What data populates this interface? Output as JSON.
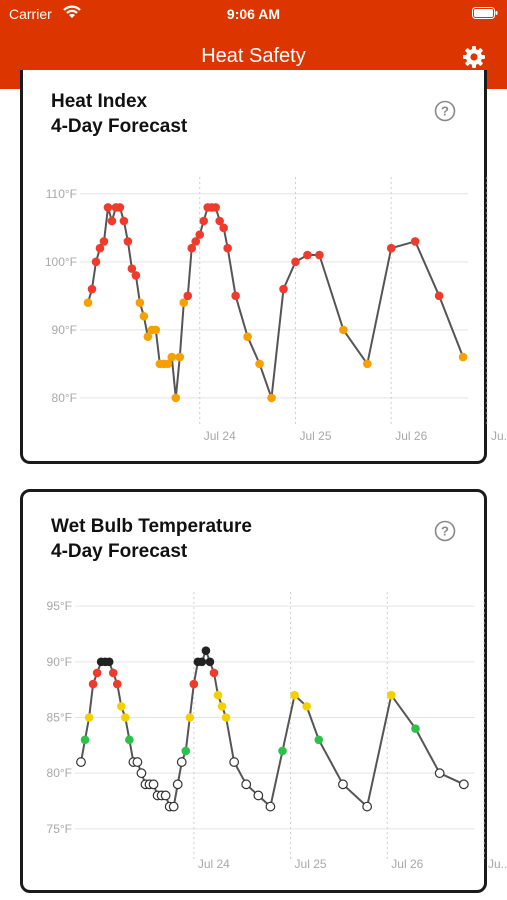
{
  "status_bar": {
    "carrier": "Carrier",
    "time": "9:06 AM"
  },
  "nav": {
    "title": "Heat Safety",
    "settings_icon": "gear-icon"
  },
  "heat_index_card": {
    "title_line1": "Heat Index",
    "title_line2": "4-Day Forecast",
    "help_icon": "question-circle-icon"
  },
  "wet_bulb_card": {
    "title_line1": "Wet Bulb Temperature",
    "title_line2": "4-Day Forecast",
    "help_icon": "question-circle-icon"
  },
  "colors": {
    "header": "#dc3500",
    "red": "#ef3b2c",
    "orange": "#f7a000",
    "yellow": "#f5d000",
    "green": "#2cc24a",
    "black": "#222222",
    "white": "#ffffff",
    "line": "#555555"
  },
  "chart_data": [
    {
      "type": "line",
      "title": "Heat Index",
      "subtitle": "4-Day Forecast",
      "ylim": [
        78,
        111
      ],
      "yticks": [
        "110°F",
        "100°F",
        "90°F",
        "80°F"
      ],
      "ytick_values": [
        110,
        100,
        90,
        80
      ],
      "xtick_labels": [
        "Jul 24",
        "Jul 25",
        "Jul 26",
        "Ju..."
      ],
      "xtick_hours": [
        28,
        52,
        76,
        100
      ],
      "grid": true,
      "points": [
        {
          "x": 0,
          "y": 94,
          "c": "orange"
        },
        {
          "x": 1,
          "y": 96,
          "c": "red"
        },
        {
          "x": 2,
          "y": 100,
          "c": "red"
        },
        {
          "x": 3,
          "y": 102,
          "c": "red"
        },
        {
          "x": 4,
          "y": 103,
          "c": "red"
        },
        {
          "x": 5,
          "y": 108,
          "c": "red"
        },
        {
          "x": 6,
          "y": 106,
          "c": "red"
        },
        {
          "x": 7,
          "y": 108,
          "c": "red"
        },
        {
          "x": 8,
          "y": 108,
          "c": "red"
        },
        {
          "x": 9,
          "y": 106,
          "c": "red"
        },
        {
          "x": 10,
          "y": 103,
          "c": "red"
        },
        {
          "x": 11,
          "y": 99,
          "c": "red"
        },
        {
          "x": 12,
          "y": 98,
          "c": "red"
        },
        {
          "x": 13,
          "y": 94,
          "c": "orange"
        },
        {
          "x": 14,
          "y": 92,
          "c": "orange"
        },
        {
          "x": 15,
          "y": 89,
          "c": "orange"
        },
        {
          "x": 16,
          "y": 90,
          "c": "orange"
        },
        {
          "x": 17,
          "y": 90,
          "c": "orange"
        },
        {
          "x": 18,
          "y": 85,
          "c": "orange"
        },
        {
          "x": 19,
          "y": 85,
          "c": "orange"
        },
        {
          "x": 20,
          "y": 85,
          "c": "orange"
        },
        {
          "x": 21,
          "y": 86,
          "c": "orange"
        },
        {
          "x": 22,
          "y": 80,
          "c": "orange"
        },
        {
          "x": 23,
          "y": 86,
          "c": "orange"
        },
        {
          "x": 24,
          "y": 94,
          "c": "orange"
        },
        {
          "x": 25,
          "y": 95,
          "c": "red"
        },
        {
          "x": 26,
          "y": 102,
          "c": "red"
        },
        {
          "x": 27,
          "y": 103,
          "c": "red"
        },
        {
          "x": 28,
          "y": 104,
          "c": "red"
        },
        {
          "x": 29,
          "y": 106,
          "c": "red"
        },
        {
          "x": 30,
          "y": 108,
          "c": "red"
        },
        {
          "x": 31,
          "y": 108,
          "c": "red"
        },
        {
          "x": 32,
          "y": 108,
          "c": "red"
        },
        {
          "x": 33,
          "y": 106,
          "c": "red"
        },
        {
          "x": 34,
          "y": 105,
          "c": "red"
        },
        {
          "x": 35,
          "y": 102,
          "c": "red"
        },
        {
          "x": 37,
          "y": 95,
          "c": "red"
        },
        {
          "x": 40,
          "y": 89,
          "c": "orange"
        },
        {
          "x": 43,
          "y": 85,
          "c": "orange"
        },
        {
          "x": 46,
          "y": 80,
          "c": "orange"
        },
        {
          "x": 49,
          "y": 96,
          "c": "red"
        },
        {
          "x": 52,
          "y": 100,
          "c": "red"
        },
        {
          "x": 55,
          "y": 101,
          "c": "red"
        },
        {
          "x": 58,
          "y": 101,
          "c": "red"
        },
        {
          "x": 64,
          "y": 90,
          "c": "orange"
        },
        {
          "x": 70,
          "y": 85,
          "c": "orange"
        },
        {
          "x": 76,
          "y": 102,
          "c": "red"
        },
        {
          "x": 82,
          "y": 103,
          "c": "red"
        },
        {
          "x": 88,
          "y": 95,
          "c": "red"
        },
        {
          "x": 94,
          "y": 86,
          "c": "orange"
        }
      ]
    },
    {
      "type": "line",
      "title": "Wet Bulb Temperature",
      "subtitle": "4-Day Forecast",
      "ylim": [
        74,
        96
      ],
      "yticks": [
        "95°F",
        "90°F",
        "85°F",
        "80°F",
        "75°F"
      ],
      "ytick_values": [
        95,
        90,
        85,
        80,
        75
      ],
      "xtick_labels": [
        "Jul 24",
        "Jul 25",
        "Jul 26",
        "Ju..."
      ],
      "xtick_hours": [
        28,
        52,
        76,
        100
      ],
      "grid": true,
      "points": [
        {
          "x": 0,
          "y": 81,
          "c": "white"
        },
        {
          "x": 1,
          "y": 83,
          "c": "green"
        },
        {
          "x": 2,
          "y": 85,
          "c": "yellow"
        },
        {
          "x": 3,
          "y": 88,
          "c": "red"
        },
        {
          "x": 4,
          "y": 89,
          "c": "red"
        },
        {
          "x": 5,
          "y": 90,
          "c": "black"
        },
        {
          "x": 6,
          "y": 90,
          "c": "black"
        },
        {
          "x": 7,
          "y": 90,
          "c": "black"
        },
        {
          "x": 8,
          "y": 89,
          "c": "red"
        },
        {
          "x": 9,
          "y": 88,
          "c": "red"
        },
        {
          "x": 10,
          "y": 86,
          "c": "yellow"
        },
        {
          "x": 11,
          "y": 85,
          "c": "yellow"
        },
        {
          "x": 12,
          "y": 83,
          "c": "green"
        },
        {
          "x": 13,
          "y": 81,
          "c": "white"
        },
        {
          "x": 14,
          "y": 81,
          "c": "white"
        },
        {
          "x": 15,
          "y": 80,
          "c": "white"
        },
        {
          "x": 16,
          "y": 79,
          "c": "white"
        },
        {
          "x": 17,
          "y": 79,
          "c": "white"
        },
        {
          "x": 18,
          "y": 79,
          "c": "white"
        },
        {
          "x": 19,
          "y": 78,
          "c": "white"
        },
        {
          "x": 20,
          "y": 78,
          "c": "white"
        },
        {
          "x": 21,
          "y": 78,
          "c": "white"
        },
        {
          "x": 22,
          "y": 77,
          "c": "white"
        },
        {
          "x": 23,
          "y": 77,
          "c": "white"
        },
        {
          "x": 24,
          "y": 79,
          "c": "white"
        },
        {
          "x": 25,
          "y": 81,
          "c": "white"
        },
        {
          "x": 26,
          "y": 82,
          "c": "green"
        },
        {
          "x": 27,
          "y": 85,
          "c": "yellow"
        },
        {
          "x": 28,
          "y": 88,
          "c": "red"
        },
        {
          "x": 29,
          "y": 90,
          "c": "black"
        },
        {
          "x": 30,
          "y": 90,
          "c": "black"
        },
        {
          "x": 31,
          "y": 91,
          "c": "black"
        },
        {
          "x": 32,
          "y": 90,
          "c": "black"
        },
        {
          "x": 33,
          "y": 89,
          "c": "red"
        },
        {
          "x": 34,
          "y": 87,
          "c": "yellow"
        },
        {
          "x": 35,
          "y": 86,
          "c": "yellow"
        },
        {
          "x": 36,
          "y": 85,
          "c": "yellow"
        },
        {
          "x": 38,
          "y": 81,
          "c": "white"
        },
        {
          "x": 41,
          "y": 79,
          "c": "white"
        },
        {
          "x": 44,
          "y": 78,
          "c": "white"
        },
        {
          "x": 47,
          "y": 77,
          "c": "white"
        },
        {
          "x": 50,
          "y": 82,
          "c": "green"
        },
        {
          "x": 53,
          "y": 87,
          "c": "yellow"
        },
        {
          "x": 56,
          "y": 86,
          "c": "yellow"
        },
        {
          "x": 59,
          "y": 83,
          "c": "green"
        },
        {
          "x": 65,
          "y": 79,
          "c": "white"
        },
        {
          "x": 71,
          "y": 77,
          "c": "white"
        },
        {
          "x": 77,
          "y": 87,
          "c": "yellow"
        },
        {
          "x": 83,
          "y": 84,
          "c": "green"
        },
        {
          "x": 89,
          "y": 80,
          "c": "white"
        },
        {
          "x": 95,
          "y": 79,
          "c": "white"
        }
      ]
    }
  ]
}
